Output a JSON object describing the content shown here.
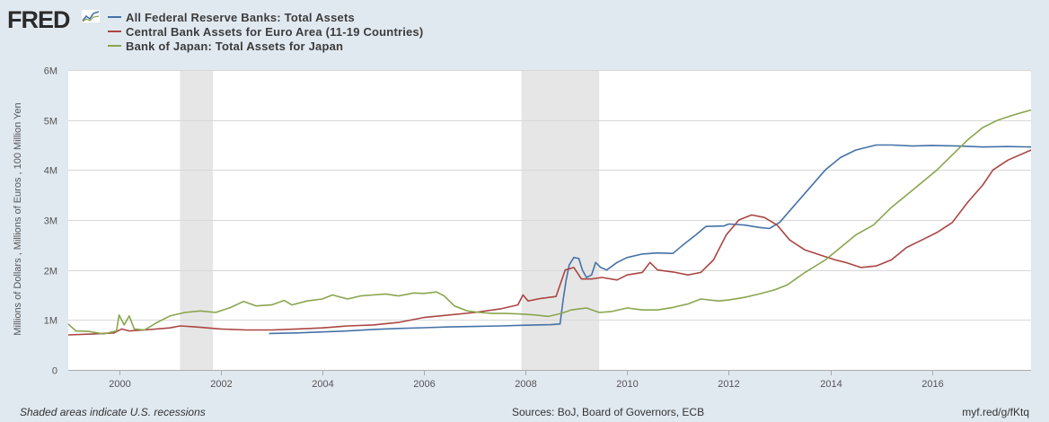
{
  "brand": {
    "name": "FRED",
    "icon": "line-chart-icon"
  },
  "legend": [
    {
      "label": "All Federal Reserve Banks: Total Assets",
      "color": "#4572a7"
    },
    {
      "label": "Central Bank Assets for Euro Area (11-19 Countries)",
      "color": "#aa4643"
    },
    {
      "label": "Bank of Japan: Total Assets for Japan",
      "color": "#89a54e"
    }
  ],
  "footer": {
    "note": "Shaded areas indicate U.S. recessions",
    "sources": "Sources: BoJ, Board of Governors, ECB",
    "link": "myf.red/g/fKtq"
  },
  "chart_data": {
    "type": "line",
    "title": "",
    "xlabel": "",
    "ylabel": "Millions of Dollars , Millions of Euros , 100 Million Yen",
    "xlim": [
      1999.0,
      2017.95
    ],
    "ylim": [
      0,
      6000000
    ],
    "x_ticks": [
      2000,
      2002,
      2004,
      2006,
      2008,
      2010,
      2012,
      2014,
      2016
    ],
    "x_tick_labels": [
      "2000",
      "2002",
      "2004",
      "2006",
      "2008",
      "2010",
      "2012",
      "2014",
      "2016"
    ],
    "y_ticks": [
      0,
      1000000,
      2000000,
      3000000,
      4000000,
      5000000,
      6000000
    ],
    "y_tick_labels": [
      "0",
      "1M",
      "2M",
      "3M",
      "4M",
      "5M",
      "6M"
    ],
    "grid": true,
    "legend_position": "top-left",
    "recessions": [
      [
        2001.2,
        2001.85
      ],
      [
        2007.92,
        2009.45
      ]
    ],
    "series": [
      {
        "name": "All Federal Reserve Banks: Total Assets",
        "color": "#4572a7",
        "points": [
          [
            2002.95,
            730000
          ],
          [
            2003.5,
            740000
          ],
          [
            2004.0,
            760000
          ],
          [
            2004.5,
            780000
          ],
          [
            2005.0,
            810000
          ],
          [
            2005.5,
            830000
          ],
          [
            2006.0,
            845000
          ],
          [
            2006.5,
            860000
          ],
          [
            2007.0,
            870000
          ],
          [
            2007.5,
            880000
          ],
          [
            2008.0,
            895000
          ],
          [
            2008.5,
            905000
          ],
          [
            2008.68,
            920000
          ],
          [
            2008.74,
            1400000
          ],
          [
            2008.8,
            1800000
          ],
          [
            2008.86,
            2100000
          ],
          [
            2008.95,
            2250000
          ],
          [
            2009.05,
            2230000
          ],
          [
            2009.12,
            2000000
          ],
          [
            2009.2,
            1850000
          ],
          [
            2009.3,
            1900000
          ],
          [
            2009.38,
            2150000
          ],
          [
            2009.48,
            2050000
          ],
          [
            2009.6,
            2000000
          ],
          [
            2009.8,
            2150000
          ],
          [
            2010.0,
            2250000
          ],
          [
            2010.3,
            2320000
          ],
          [
            2010.6,
            2340000
          ],
          [
            2010.9,
            2330000
          ],
          [
            2011.1,
            2500000
          ],
          [
            2011.35,
            2700000
          ],
          [
            2011.55,
            2870000
          ],
          [
            2011.9,
            2880000
          ],
          [
            2012.0,
            2920000
          ],
          [
            2012.3,
            2900000
          ],
          [
            2012.6,
            2850000
          ],
          [
            2012.8,
            2830000
          ],
          [
            2013.0,
            2950000
          ],
          [
            2013.3,
            3300000
          ],
          [
            2013.6,
            3650000
          ],
          [
            2013.9,
            4000000
          ],
          [
            2014.2,
            4250000
          ],
          [
            2014.5,
            4400000
          ],
          [
            2014.9,
            4500000
          ],
          [
            2015.2,
            4500000
          ],
          [
            2015.6,
            4480000
          ],
          [
            2016.0,
            4490000
          ],
          [
            2016.5,
            4480000
          ],
          [
            2017.0,
            4460000
          ],
          [
            2017.5,
            4470000
          ],
          [
            2017.95,
            4460000
          ]
        ]
      },
      {
        "name": "Central Bank Assets for Euro Area (11-19 Countries)",
        "color": "#aa4643",
        "points": [
          [
            1999.0,
            700000
          ],
          [
            1999.5,
            720000
          ],
          [
            1999.9,
            740000
          ],
          [
            2000.05,
            820000
          ],
          [
            2000.2,
            780000
          ],
          [
            2000.5,
            800000
          ],
          [
            2001.0,
            840000
          ],
          [
            2001.2,
            880000
          ],
          [
            2001.5,
            860000
          ],
          [
            2002.0,
            820000
          ],
          [
            2002.5,
            800000
          ],
          [
            2003.0,
            800000
          ],
          [
            2003.5,
            820000
          ],
          [
            2004.0,
            840000
          ],
          [
            2004.5,
            880000
          ],
          [
            2005.0,
            900000
          ],
          [
            2005.5,
            950000
          ],
          [
            2006.0,
            1050000
          ],
          [
            2006.5,
            1100000
          ],
          [
            2007.0,
            1150000
          ],
          [
            2007.5,
            1220000
          ],
          [
            2007.85,
            1300000
          ],
          [
            2007.95,
            1500000
          ],
          [
            2008.05,
            1380000
          ],
          [
            2008.3,
            1430000
          ],
          [
            2008.6,
            1470000
          ],
          [
            2008.78,
            2000000
          ],
          [
            2008.95,
            2050000
          ],
          [
            2009.1,
            1820000
          ],
          [
            2009.3,
            1820000
          ],
          [
            2009.5,
            1850000
          ],
          [
            2009.8,
            1800000
          ],
          [
            2010.0,
            1900000
          ],
          [
            2010.3,
            1950000
          ],
          [
            2010.45,
            2150000
          ],
          [
            2010.6,
            2000000
          ],
          [
            2010.9,
            1960000
          ],
          [
            2011.2,
            1900000
          ],
          [
            2011.45,
            1950000
          ],
          [
            2011.7,
            2200000
          ],
          [
            2011.95,
            2700000
          ],
          [
            2012.2,
            3000000
          ],
          [
            2012.45,
            3100000
          ],
          [
            2012.7,
            3050000
          ],
          [
            2012.95,
            2900000
          ],
          [
            2013.2,
            2600000
          ],
          [
            2013.5,
            2400000
          ],
          [
            2013.8,
            2300000
          ],
          [
            2014.1,
            2200000
          ],
          [
            2014.3,
            2150000
          ],
          [
            2014.6,
            2050000
          ],
          [
            2014.9,
            2080000
          ],
          [
            2015.2,
            2200000
          ],
          [
            2015.5,
            2450000
          ],
          [
            2015.8,
            2600000
          ],
          [
            2016.1,
            2750000
          ],
          [
            2016.4,
            2950000
          ],
          [
            2016.7,
            3350000
          ],
          [
            2017.0,
            3700000
          ],
          [
            2017.2,
            4000000
          ],
          [
            2017.5,
            4200000
          ],
          [
            2017.95,
            4400000
          ]
        ]
      },
      {
        "name": "Bank of Japan: Total Assets for Japan",
        "color": "#89a54e",
        "points": [
          [
            1999.0,
            920000
          ],
          [
            1999.15,
            780000
          ],
          [
            1999.4,
            770000
          ],
          [
            1999.7,
            720000
          ],
          [
            1999.95,
            780000
          ],
          [
            2000.0,
            1100000
          ],
          [
            2000.1,
            900000
          ],
          [
            2000.2,
            1080000
          ],
          [
            2000.3,
            820000
          ],
          [
            2000.5,
            800000
          ],
          [
            2000.75,
            950000
          ],
          [
            2001.0,
            1080000
          ],
          [
            2001.3,
            1150000
          ],
          [
            2001.6,
            1180000
          ],
          [
            2001.9,
            1150000
          ],
          [
            2002.2,
            1250000
          ],
          [
            2002.45,
            1370000
          ],
          [
            2002.7,
            1280000
          ],
          [
            2003.0,
            1300000
          ],
          [
            2003.25,
            1390000
          ],
          [
            2003.4,
            1300000
          ],
          [
            2003.7,
            1380000
          ],
          [
            2004.0,
            1420000
          ],
          [
            2004.2,
            1500000
          ],
          [
            2004.5,
            1420000
          ],
          [
            2004.75,
            1480000
          ],
          [
            2005.0,
            1500000
          ],
          [
            2005.25,
            1520000
          ],
          [
            2005.5,
            1480000
          ],
          [
            2005.8,
            1540000
          ],
          [
            2006.0,
            1530000
          ],
          [
            2006.25,
            1560000
          ],
          [
            2006.4,
            1480000
          ],
          [
            2006.6,
            1280000
          ],
          [
            2006.85,
            1180000
          ],
          [
            2007.1,
            1150000
          ],
          [
            2007.35,
            1130000
          ],
          [
            2007.6,
            1130000
          ],
          [
            2007.9,
            1120000
          ],
          [
            2008.2,
            1100000
          ],
          [
            2008.45,
            1070000
          ],
          [
            2008.7,
            1130000
          ],
          [
            2008.9,
            1200000
          ],
          [
            2009.2,
            1240000
          ],
          [
            2009.45,
            1150000
          ],
          [
            2009.7,
            1170000
          ],
          [
            2010.0,
            1240000
          ],
          [
            2010.3,
            1200000
          ],
          [
            2010.6,
            1200000
          ],
          [
            2010.9,
            1250000
          ],
          [
            2011.2,
            1320000
          ],
          [
            2011.45,
            1420000
          ],
          [
            2011.8,
            1380000
          ],
          [
            2012.0,
            1400000
          ],
          [
            2012.3,
            1450000
          ],
          [
            2012.6,
            1520000
          ],
          [
            2012.9,
            1600000
          ],
          [
            2013.15,
            1700000
          ],
          [
            2013.5,
            1950000
          ],
          [
            2013.9,
            2200000
          ],
          [
            2014.2,
            2450000
          ],
          [
            2014.5,
            2700000
          ],
          [
            2014.85,
            2900000
          ],
          [
            2015.2,
            3250000
          ],
          [
            2015.5,
            3500000
          ],
          [
            2015.8,
            3750000
          ],
          [
            2016.1,
            4000000
          ],
          [
            2016.4,
            4300000
          ],
          [
            2016.7,
            4600000
          ],
          [
            2017.0,
            4850000
          ],
          [
            2017.3,
            5000000
          ],
          [
            2017.6,
            5100000
          ],
          [
            2017.95,
            5200000
          ]
        ]
      }
    ]
  }
}
